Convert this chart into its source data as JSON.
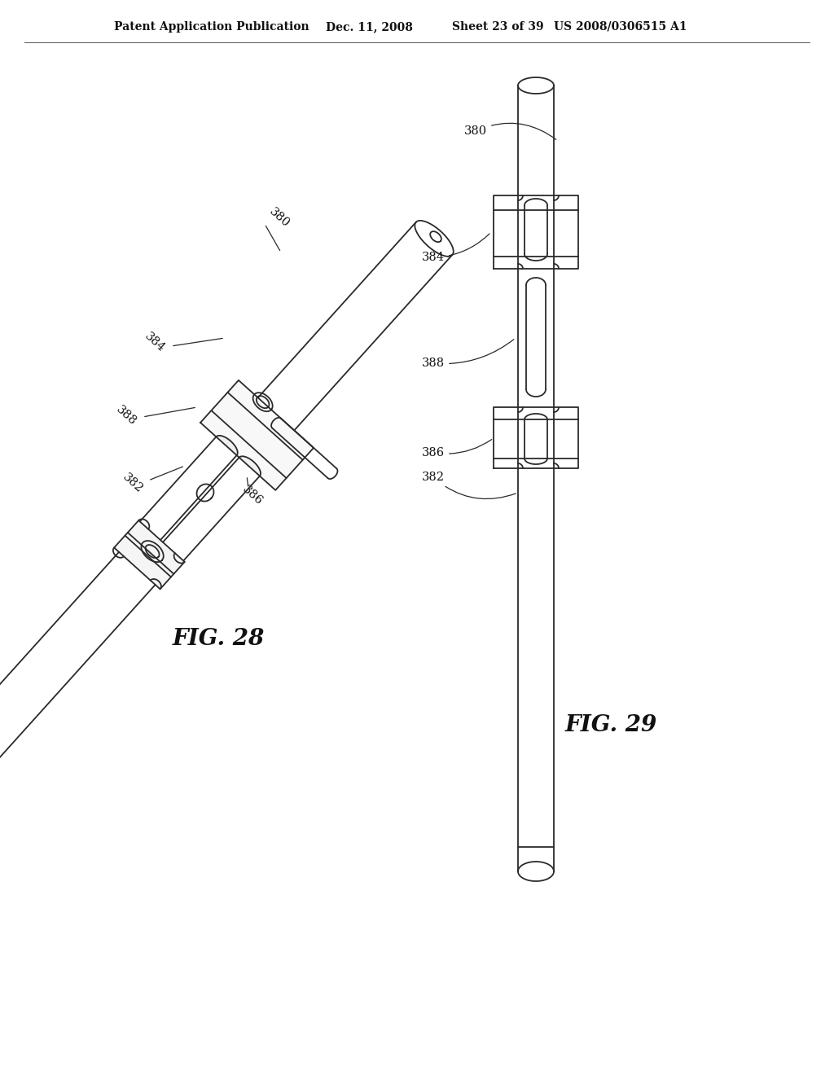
{
  "background_color": "#ffffff",
  "header_text": "Patent Application Publication",
  "header_date": "Dec. 11, 2008",
  "header_sheet": "Sheet 23 of 39",
  "header_patent": "US 2008/0306515 A1",
  "fig28_label": "FIG. 28",
  "fig29_label": "FIG. 29",
  "line_color": "#2a2a2a",
  "line_width": 1.3,
  "label_fontsize": 10.5,
  "header_fontsize": 10,
  "fig_label_fontsize": 20
}
